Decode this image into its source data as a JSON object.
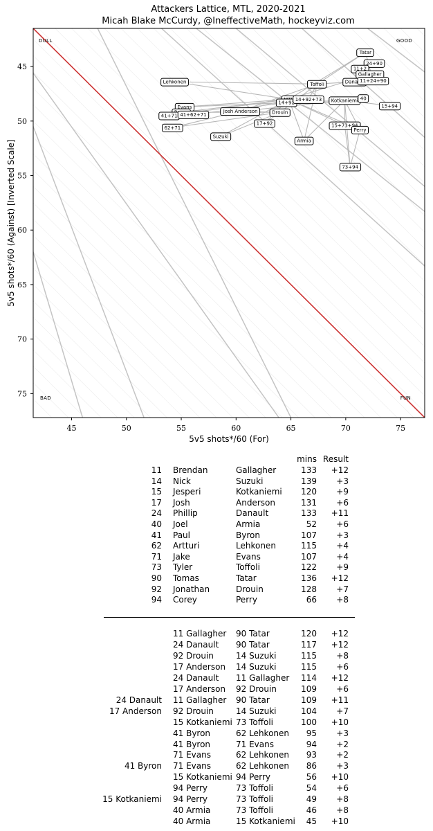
{
  "chart_data": {
    "type": "scatter",
    "title": "Attackers Lattice, MTL, 2020-2021",
    "subtitle": "Micah Blake McCurdy, @IneffectiveMath, hockeyviz.com",
    "xlabel": "5v5 shots*/60 (For)",
    "ylabel": "5v5 shots*/60 (Against) [Inverted Scale]",
    "xlim": [
      41.5,
      77.2
    ],
    "ylim": [
      77.2,
      41.5
    ],
    "y_inverted": true,
    "xticks": [
      "45",
      "50",
      "55",
      "60",
      "65",
      "70",
      "75"
    ],
    "yticks": [
      "45",
      "50",
      "55",
      "60",
      "65",
      "70",
      "75"
    ],
    "corner_labels": {
      "top_left": "DULL",
      "top_right": "GOOD",
      "bottom_left": "BAD",
      "bottom_right": "FUN"
    },
    "diagonal_color": "#cc3333",
    "points": [
      {
        "label": "Tatar",
        "x": 71.8,
        "y": 43.7
      },
      {
        "label": "24+90",
        "x": 72.6,
        "y": 44.7
      },
      {
        "label": "11+2",
        "x": 71.3,
        "y": 45.2
      },
      {
        "label": "Gallagher",
        "x": 72.2,
        "y": 45.7
      },
      {
        "label": "Danault",
        "x": 70.8,
        "y": 46.4
      },
      {
        "label": "11+24+90",
        "x": 72.5,
        "y": 46.3
      },
      {
        "label": "Lehkonen",
        "x": 54.4,
        "y": 46.4
      },
      {
        "label": "Toffoli",
        "x": 67.4,
        "y": 46.6
      },
      {
        "label": "MTL",
        "x": 64.8,
        "y": 48.0
      },
      {
        "label": "14+92",
        "x": 64.6,
        "y": 48.3
      },
      {
        "label": "14+92+73",
        "x": 66.6,
        "y": 48.0
      },
      {
        "label": "Kotkaniemi",
        "x": 69.9,
        "y": 48.1
      },
      {
        "label": "40",
        "x": 71.6,
        "y": 47.9
      },
      {
        "label": "15+94",
        "x": 74.0,
        "y": 48.6
      },
      {
        "label": "Evans",
        "x": 55.3,
        "y": 48.7
      },
      {
        "label": "Byron",
        "x": 55.0,
        "y": 49.2
      },
      {
        "label": "41+71",
        "x": 53.9,
        "y": 49.5
      },
      {
        "label": "41+62+71",
        "x": 56.1,
        "y": 49.4
      },
      {
        "label": "Josh Anderson",
        "x": 60.4,
        "y": 49.1
      },
      {
        "label": "Drouin",
        "x": 64.0,
        "y": 49.2
      },
      {
        "label": "17+92",
        "x": 62.6,
        "y": 50.2
      },
      {
        "label": "62+71",
        "x": 54.2,
        "y": 50.6
      },
      {
        "label": "15+73+94",
        "x": 69.9,
        "y": 50.4
      },
      {
        "label": "Perry",
        "x": 71.3,
        "y": 50.8
      },
      {
        "label": "Suzuki",
        "x": 58.6,
        "y": 51.4
      },
      {
        "label": "Armia",
        "x": 66.2,
        "y": 51.8
      },
      {
        "label": "73+94",
        "x": 70.4,
        "y": 54.2
      }
    ],
    "edges": [
      [
        "Lehkonen",
        "MTL"
      ],
      [
        "Lehkonen",
        "Toffoli"
      ],
      [
        "Evans",
        "MTL"
      ],
      [
        "Evans",
        "Kotkaniemi"
      ],
      [
        "Byron",
        "MTL"
      ],
      [
        "Byron",
        "Drouin"
      ],
      [
        "41+71",
        "MTL"
      ],
      [
        "41+62+71",
        "14+92"
      ],
      [
        "62+71",
        "MTL"
      ],
      [
        "62+71",
        "Drouin"
      ],
      [
        "Josh Anderson",
        "Toffoli"
      ],
      [
        "Josh Anderson",
        "Kotkaniemi"
      ],
      [
        "Suzuki",
        "MTL"
      ],
      [
        "Suzuki",
        "Drouin"
      ],
      [
        "17+92",
        "MTL"
      ],
      [
        "Drouin",
        "Toffoli"
      ],
      [
        "Armia",
        "Toffoli"
      ],
      [
        "Armia",
        "Kotkaniemi"
      ],
      [
        "Armia",
        "MTL"
      ],
      [
        "MTL",
        "Tatar"
      ],
      [
        "MTL",
        "Gallagher"
      ],
      [
        "Toffoli",
        "Tatar"
      ],
      [
        "Toffoli",
        "Danault"
      ],
      [
        "Kotkaniemi",
        "15+94"
      ],
      [
        "Kotkaniemi",
        "Perry"
      ],
      [
        "Kotkaniemi",
        "40"
      ],
      [
        "15+73+94",
        "MTL"
      ],
      [
        "15+73+94",
        "Perry"
      ],
      [
        "15+73+94",
        "Kotkaniemi"
      ],
      [
        "73+94",
        "Kotkaniemi"
      ],
      [
        "73+94",
        "Perry"
      ],
      [
        "73+94",
        "15+73+94"
      ],
      [
        "Perry",
        "MTL"
      ],
      [
        "Danault",
        "Gallagher"
      ],
      [
        "11+24+90",
        "Tatar"
      ],
      [
        "14+92+73",
        "Toffoli"
      ],
      [
        "Josh Anderson",
        "Drouin"
      ],
      [
        "17+92",
        "Drouin"
      ]
    ],
    "contours": [
      {
        "x1": 41.5,
        "y1": 29.5,
        "x2": 77.2,
        "y2": 58.3
      },
      {
        "x1": 41.5,
        "y1": 29.6,
        "x2": 65.0,
        "y2": 77.2
      },
      {
        "x1": 41.5,
        "y1": 45.6,
        "x2": 63.9,
        "y2": 77.2
      },
      {
        "x1": 41.5,
        "y1": 50.5,
        "x2": 51.6,
        "y2": 77.2
      },
      {
        "x1": 41.5,
        "y1": 62.0,
        "x2": 46.0,
        "y2": 77.2
      },
      {
        "x1": 53.2,
        "y1": 41.5,
        "x2": 77.2,
        "y2": 63.3
      },
      {
        "x1": 60.0,
        "y1": 41.5,
        "x2": 77.2,
        "y2": 56.0
      },
      {
        "x1": 66.0,
        "y1": 41.5,
        "x2": 77.2,
        "y2": 51.5
      },
      {
        "x1": 72.0,
        "y1": 41.5,
        "x2": 77.2,
        "y2": 45.5
      }
    ]
  },
  "table_header": {
    "mins": "mins",
    "result": "Result"
  },
  "players": [
    {
      "num": "11",
      "first": "Brendan",
      "last": "Gallagher",
      "mins": "133",
      "result": "+12"
    },
    {
      "num": "14",
      "first": "Nick",
      "last": "Suzuki",
      "mins": "139",
      "result": "+3"
    },
    {
      "num": "15",
      "first": "Jesperi",
      "last": "Kotkaniemi",
      "mins": "120",
      "result": "+9"
    },
    {
      "num": "17",
      "first": "Josh",
      "last": "Anderson",
      "mins": "131",
      "result": "+6"
    },
    {
      "num": "24",
      "first": "Phillip",
      "last": "Danault",
      "mins": "133",
      "result": "+11"
    },
    {
      "num": "40",
      "first": "Joel",
      "last": "Armia",
      "mins": "52",
      "result": "+6"
    },
    {
      "num": "41",
      "first": "Paul",
      "last": "Byron",
      "mins": "107",
      "result": "+3"
    },
    {
      "num": "62",
      "first": "Artturi",
      "last": "Lehkonen",
      "mins": "115",
      "result": "+4"
    },
    {
      "num": "71",
      "first": "Jake",
      "last": "Evans",
      "mins": "107",
      "result": "+4"
    },
    {
      "num": "73",
      "first": "Tyler",
      "last": "Toffoli",
      "mins": "122",
      "result": "+9"
    },
    {
      "num": "90",
      "first": "Tomas",
      "last": "Tatar",
      "mins": "136",
      "result": "+12"
    },
    {
      "num": "92",
      "first": "Jonathan",
      "last": "Drouin",
      "mins": "128",
      "result": "+7"
    },
    {
      "num": "94",
      "first": "Corey",
      "last": "Perry",
      "mins": "66",
      "result": "+8"
    }
  ],
  "units": [
    {
      "p0": "",
      "p1": "11 Gallagher",
      "p2": "90 Tatar",
      "mins": "120",
      "result": "+12"
    },
    {
      "p0": "",
      "p1": "24 Danault",
      "p2": "90 Tatar",
      "mins": "117",
      "result": "+12"
    },
    {
      "p0": "",
      "p1": "92 Drouin",
      "p2": "14 Suzuki",
      "mins": "115",
      "result": "+8"
    },
    {
      "p0": "",
      "p1": "17 Anderson",
      "p2": "14 Suzuki",
      "mins": "115",
      "result": "+6"
    },
    {
      "p0": "",
      "p1": "24 Danault",
      "p2": "11 Gallagher",
      "mins": "114",
      "result": "+12"
    },
    {
      "p0": "",
      "p1": "17 Anderson",
      "p2": "92 Drouin",
      "mins": "109",
      "result": "+6"
    },
    {
      "p0": "24 Danault",
      "p1": "11 Gallagher",
      "p2": "90 Tatar",
      "mins": "109",
      "result": "+11"
    },
    {
      "p0": "17 Anderson",
      "p1": "92 Drouin",
      "p2": "14 Suzuki",
      "mins": "104",
      "result": "+7"
    },
    {
      "p0": "",
      "p1": "15 Kotkaniemi",
      "p2": "73 Toffoli",
      "mins": "100",
      "result": "+10"
    },
    {
      "p0": "",
      "p1": "41 Byron",
      "p2": "62 Lehkonen",
      "mins": "95",
      "result": "+3"
    },
    {
      "p0": "",
      "p1": "41 Byron",
      "p2": "71 Evans",
      "mins": "94",
      "result": "+2"
    },
    {
      "p0": "",
      "p1": "71 Evans",
      "p2": "62 Lehkonen",
      "mins": "93",
      "result": "+2"
    },
    {
      "p0": "41 Byron",
      "p1": "71 Evans",
      "p2": "62 Lehkonen",
      "mins": "86",
      "result": "+3"
    },
    {
      "p0": "",
      "p1": "15 Kotkaniemi",
      "p2": "94 Perry",
      "mins": "56",
      "result": "+10"
    },
    {
      "p0": "",
      "p1": "94 Perry",
      "p2": "73 Toffoli",
      "mins": "54",
      "result": "+6"
    },
    {
      "p0": "15 Kotkaniemi",
      "p1": "94 Perry",
      "p2": "73 Toffoli",
      "mins": "49",
      "result": "+8"
    },
    {
      "p0": "",
      "p1": "40 Armia",
      "p2": "73 Toffoli",
      "mins": "46",
      "result": "+8"
    },
    {
      "p0": "",
      "p1": "40 Armia",
      "p2": "15 Kotkaniemi",
      "mins": "45",
      "result": "+10"
    }
  ]
}
